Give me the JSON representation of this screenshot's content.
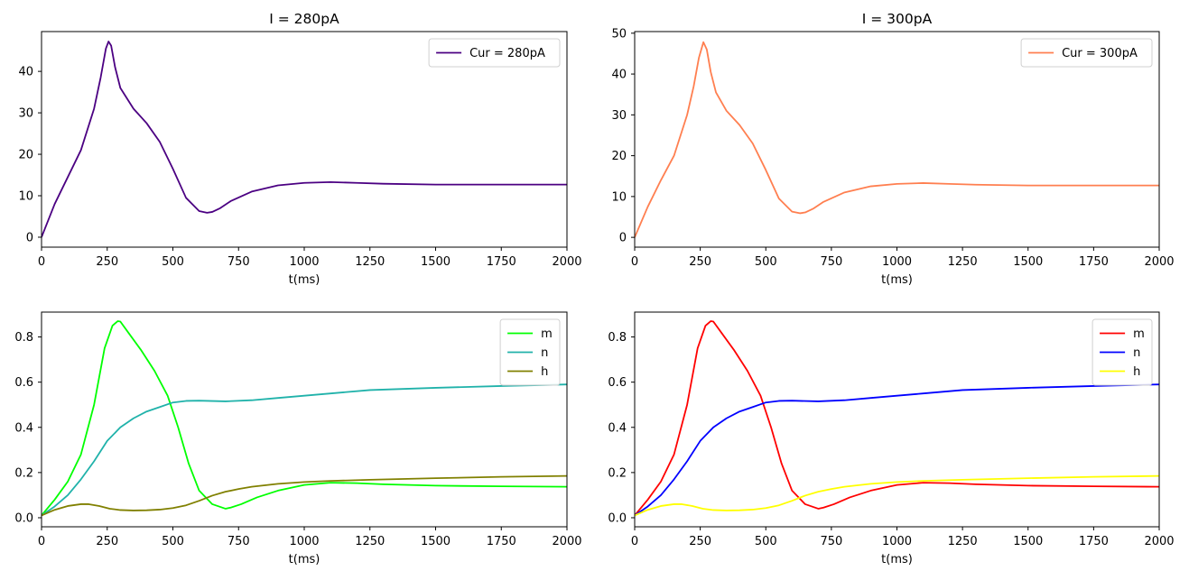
{
  "chart_data": [
    {
      "type": "line",
      "title": "I = 280pA",
      "xlabel": "t(ms)",
      "ylabel": "",
      "xlim": [
        0,
        2000
      ],
      "ylim": [
        -2.4,
        49.6
      ],
      "xticks": [
        0,
        250,
        500,
        750,
        1000,
        1250,
        1500,
        1750,
        2000
      ],
      "yticks": [
        0,
        10,
        20,
        30,
        40
      ],
      "grid": false,
      "legend": "top-right",
      "series": [
        {
          "name": "Cur = 280pA",
          "color": "#4b0082",
          "x": [
            0,
            50,
            100,
            150,
            200,
            225,
            245,
            255,
            265,
            280,
            300,
            350,
            400,
            450,
            500,
            550,
            600,
            630,
            650,
            680,
            720,
            800,
            900,
            1000,
            1100,
            1200,
            1300,
            1500,
            1750,
            2000
          ],
          "y": [
            0,
            8,
            14.5,
            21,
            31,
            38.5,
            45.5,
            47.2,
            46.2,
            41,
            36,
            31,
            27.5,
            23,
            16.5,
            9.5,
            6.3,
            5.9,
            6.1,
            7,
            8.7,
            11,
            12.5,
            13.1,
            13.3,
            13.1,
            12.9,
            12.7,
            12.7,
            12.7
          ]
        }
      ]
    },
    {
      "type": "line",
      "title": "I = 300pA",
      "xlabel": "t(ms)",
      "ylabel": "",
      "xlim": [
        0,
        2000
      ],
      "ylim": [
        -2.4,
        50.4
      ],
      "xticks": [
        0,
        250,
        500,
        750,
        1000,
        1250,
        1500,
        1750,
        2000
      ],
      "yticks": [
        0,
        10,
        20,
        30,
        40,
        50
      ],
      "grid": false,
      "legend": "top-right",
      "series": [
        {
          "name": "Cur = 300pA",
          "color": "#ff7f50",
          "x": [
            0,
            50,
            100,
            150,
            200,
            225,
            245,
            262,
            275,
            290,
            310,
            350,
            400,
            450,
            500,
            550,
            600,
            630,
            650,
            680,
            720,
            800,
            900,
            1000,
            1100,
            1200,
            1300,
            1500,
            1750,
            2000
          ],
          "y": [
            0,
            7.5,
            14,
            20,
            30,
            37,
            44,
            47.8,
            46,
            40.5,
            35.5,
            31,
            27.5,
            23,
            16.5,
            9.5,
            6.3,
            5.9,
            6.1,
            7,
            8.7,
            11,
            12.5,
            13.1,
            13.3,
            13.1,
            12.9,
            12.7,
            12.7,
            12.7
          ]
        }
      ]
    },
    {
      "type": "line",
      "title": "",
      "xlabel": "t(ms)",
      "ylabel": "",
      "xlim": [
        0,
        2000
      ],
      "ylim": [
        -0.04,
        0.91
      ],
      "xticks": [
        0,
        250,
        500,
        750,
        1000,
        1250,
        1500,
        1750,
        2000
      ],
      "yticks": [
        0.0,
        0.2,
        0.4,
        0.6,
        0.8
      ],
      "grid": false,
      "legend": "top-right",
      "series": [
        {
          "name": "m",
          "color": "#00ff00",
          "x": [
            0,
            50,
            100,
            150,
            200,
            240,
            270,
            290,
            300,
            330,
            380,
            430,
            480,
            520,
            560,
            600,
            650,
            700,
            720,
            760,
            820,
            900,
            1000,
            1100,
            1200,
            1300,
            1500,
            1750,
            2000
          ],
          "y": [
            0.01,
            0.08,
            0.16,
            0.28,
            0.5,
            0.75,
            0.85,
            0.87,
            0.868,
            0.82,
            0.74,
            0.65,
            0.54,
            0.4,
            0.24,
            0.12,
            0.06,
            0.04,
            0.045,
            0.06,
            0.09,
            0.12,
            0.145,
            0.155,
            0.153,
            0.148,
            0.142,
            0.139,
            0.137
          ]
        },
        {
          "name": "n",
          "color": "#20b2aa",
          "x": [
            0,
            50,
            100,
            150,
            200,
            250,
            300,
            350,
            400,
            450,
            500,
            550,
            600,
            700,
            800,
            900,
            1000,
            1100,
            1250,
            1500,
            1750,
            2000
          ],
          "y": [
            0.01,
            0.05,
            0.1,
            0.17,
            0.25,
            0.34,
            0.4,
            0.44,
            0.47,
            0.49,
            0.51,
            0.517,
            0.518,
            0.515,
            0.52,
            0.53,
            0.54,
            0.55,
            0.565,
            0.575,
            0.583,
            0.59
          ]
        },
        {
          "name": "h",
          "color": "#808000",
          "x": [
            0,
            50,
            100,
            150,
            180,
            220,
            260,
            300,
            350,
            400,
            450,
            500,
            550,
            600,
            650,
            700,
            750,
            800,
            900,
            1000,
            1100,
            1250,
            1500,
            1750,
            2000
          ],
          "y": [
            0.01,
            0.035,
            0.052,
            0.06,
            0.06,
            0.052,
            0.04,
            0.034,
            0.032,
            0.033,
            0.036,
            0.043,
            0.055,
            0.075,
            0.098,
            0.115,
            0.127,
            0.137,
            0.15,
            0.158,
            0.163,
            0.168,
            0.175,
            0.181,
            0.185
          ]
        }
      ]
    },
    {
      "type": "line",
      "title": "",
      "xlabel": "t(ms)",
      "ylabel": "",
      "xlim": [
        0,
        2000
      ],
      "ylim": [
        -0.04,
        0.91
      ],
      "xticks": [
        0,
        250,
        500,
        750,
        1000,
        1250,
        1500,
        1750,
        2000
      ],
      "yticks": [
        0.0,
        0.2,
        0.4,
        0.6,
        0.8
      ],
      "grid": false,
      "legend": "top-right",
      "series": [
        {
          "name": "m",
          "color": "#ff0000",
          "x": [
            0,
            50,
            100,
            150,
            200,
            240,
            270,
            290,
            300,
            330,
            380,
            430,
            480,
            520,
            560,
            600,
            650,
            700,
            720,
            760,
            820,
            900,
            1000,
            1100,
            1200,
            1300,
            1500,
            1750,
            2000
          ],
          "y": [
            0.01,
            0.08,
            0.16,
            0.28,
            0.5,
            0.75,
            0.85,
            0.87,
            0.868,
            0.82,
            0.74,
            0.65,
            0.54,
            0.4,
            0.24,
            0.12,
            0.06,
            0.04,
            0.045,
            0.06,
            0.09,
            0.12,
            0.145,
            0.155,
            0.153,
            0.148,
            0.142,
            0.139,
            0.137
          ]
        },
        {
          "name": "n",
          "color": "#0000ff",
          "x": [
            0,
            50,
            100,
            150,
            200,
            250,
            300,
            350,
            400,
            450,
            500,
            550,
            600,
            700,
            800,
            900,
            1000,
            1100,
            1250,
            1500,
            1750,
            2000
          ],
          "y": [
            0.01,
            0.05,
            0.1,
            0.17,
            0.25,
            0.34,
            0.4,
            0.44,
            0.47,
            0.49,
            0.51,
            0.517,
            0.518,
            0.515,
            0.52,
            0.53,
            0.54,
            0.55,
            0.565,
            0.575,
            0.583,
            0.59
          ]
        },
        {
          "name": "h",
          "color": "#ffff00",
          "x": [
            0,
            50,
            100,
            150,
            180,
            220,
            260,
            300,
            350,
            400,
            450,
            500,
            550,
            600,
            650,
            700,
            750,
            800,
            900,
            1000,
            1100,
            1250,
            1500,
            1750,
            2000
          ],
          "y": [
            0.01,
            0.035,
            0.052,
            0.06,
            0.06,
            0.052,
            0.04,
            0.034,
            0.032,
            0.033,
            0.036,
            0.043,
            0.055,
            0.075,
            0.098,
            0.115,
            0.127,
            0.137,
            0.15,
            0.158,
            0.163,
            0.168,
            0.175,
            0.181,
            0.185
          ]
        }
      ]
    }
  ]
}
